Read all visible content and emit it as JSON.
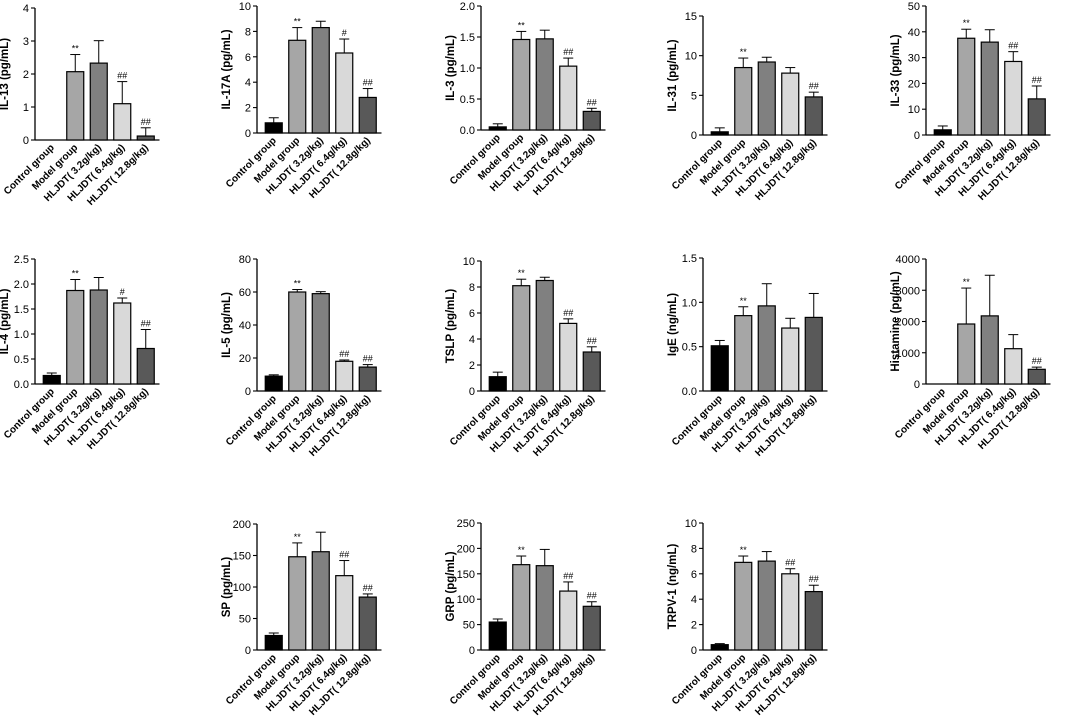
{
  "colors": [
    "#000000",
    "#a6a6a6",
    "#808080",
    "#d9d9d9",
    "#595959"
  ],
  "chart_data": [
    {
      "type": "bar",
      "ylabel": "IL-13 (pg/mL)",
      "ylim": [
        0,
        4
      ],
      "yticks": [
        0,
        1,
        2,
        3,
        4
      ],
      "categories": [
        "Control group",
        "Model group",
        "HLJDT( 3.2g/kg)",
        "HLJDT( 6.4g/kg)",
        "HLJDT( 12.8g/kg)"
      ],
      "values": [
        0,
        2.07,
        2.33,
        1.1,
        0.12
      ],
      "errors": [
        0,
        0.52,
        0.68,
        0.67,
        0.25
      ],
      "significance": [
        "",
        "**",
        "",
        "##",
        "##"
      ]
    },
    {
      "type": "bar",
      "ylabel": "IL-17A (pg/mL)",
      "ylim": [
        0,
        10
      ],
      "yticks": [
        0,
        2,
        4,
        6,
        8,
        10
      ],
      "categories": [
        "Control group",
        "Model group",
        "HLJDT( 3.2g/kg)",
        "HLJDT( 6.4g/kg)",
        "HLJDT( 12.8g/kg)"
      ],
      "values": [
        0.8,
        7.3,
        8.3,
        6.3,
        2.8
      ],
      "errors": [
        0.4,
        1.0,
        0.5,
        1.1,
        0.7
      ],
      "significance": [
        "",
        "**",
        "",
        "#",
        "##"
      ]
    },
    {
      "type": "bar",
      "ylabel": "IL-3 (pg/mL)",
      "ylim": [
        0,
        2
      ],
      "yticks": [
        0,
        0.5,
        1,
        1.5,
        2
      ],
      "yticklabels": [
        "0.0",
        "0.5",
        "1.0",
        "1.5",
        "2.0"
      ],
      "categories": [
        "Control group",
        "Model group",
        "HLJDT( 3.2g/kg)",
        "HLJDT( 6.4g/kg)",
        "HLJDT( 12.8g/kg)"
      ],
      "values": [
        0.05,
        1.46,
        1.47,
        1.03,
        0.3
      ],
      "errors": [
        0.05,
        0.13,
        0.14,
        0.13,
        0.05
      ],
      "significance": [
        "",
        "**",
        "",
        "##",
        "##"
      ]
    },
    {
      "type": "bar",
      "ylabel": "IL-31 (pg/mL)",
      "ylim": [
        0,
        15
      ],
      "yticks": [
        0,
        5,
        10,
        15
      ],
      "categories": [
        "Control group",
        "Model group",
        "HLJDT( 3.2g/kg)",
        "HLJDT( 6.4g/kg)",
        "HLJDT( 12.8g/kg)"
      ],
      "values": [
        0.4,
        8.5,
        9.2,
        7.8,
        4.8
      ],
      "errors": [
        0.5,
        1.2,
        0.6,
        0.7,
        0.6
      ],
      "significance": [
        "",
        "**",
        "",
        "",
        "##"
      ]
    },
    {
      "type": "bar",
      "ylabel": "IL-33 (pg/mL)",
      "ylim": [
        0,
        50
      ],
      "yticks": [
        0,
        10,
        20,
        30,
        40,
        50
      ],
      "categories": [
        "Control group",
        "Model group",
        "HLJDT( 3.2g/kg)",
        "HLJDT( 6.4g/kg)",
        "HLJDT( 12.8g/kg)"
      ],
      "values": [
        2,
        37.5,
        36,
        28.5,
        14
      ],
      "errors": [
        1.5,
        3.5,
        4.8,
        3.8,
        5
      ],
      "significance": [
        "",
        "**",
        "",
        "##",
        "##"
      ]
    },
    {
      "type": "bar",
      "ylabel": "IL-4 (pg/mL)",
      "ylim": [
        0,
        2.5
      ],
      "yticks": [
        0,
        0.5,
        1,
        1.5,
        2,
        2.5
      ],
      "yticklabels": [
        "0.0",
        "0.5",
        "1.0",
        "1.5",
        "2.0",
        "2.5"
      ],
      "categories": [
        "Control group",
        "Model group",
        "HLJDT( 3.2g/kg)",
        "HLJDT( 6.4g/kg)",
        "HLJDT( 12.8g/kg)"
      ],
      "values": [
        0.17,
        1.87,
        1.88,
        1.62,
        0.71
      ],
      "errors": [
        0.05,
        0.22,
        0.25,
        0.1,
        0.38
      ],
      "significance": [
        "",
        "**",
        "",
        "#",
        "##"
      ]
    },
    {
      "type": "bar",
      "ylabel": "IL-5 (pg/mL)",
      "ylim": [
        0,
        80
      ],
      "yticks": [
        0,
        20,
        40,
        60,
        80
      ],
      "categories": [
        "Control group",
        "Model group",
        "HLJDT( 3.2g/kg)",
        "HLJDT( 6.4g/kg)",
        "HLJDT( 12.8g/kg)"
      ],
      "values": [
        9,
        60,
        59,
        18,
        14.5
      ],
      "errors": [
        0.8,
        1.5,
        1.2,
        0.8,
        1.5
      ],
      "significance": [
        "",
        "**",
        "",
        "##",
        "##"
      ]
    },
    {
      "type": "bar",
      "ylabel": "TSLP (pg/mL)",
      "ylim": [
        0,
        10
      ],
      "yticks": [
        0,
        2,
        4,
        6,
        8,
        10
      ],
      "categories": [
        "Control group",
        "Model group",
        "HLJDT( 3.2g/kg)",
        "HLJDT( 6.4g/kg)",
        "HLJDT( 12.8g/kg)"
      ],
      "values": [
        1.1,
        8.1,
        8.5,
        5.2,
        3
      ],
      "errors": [
        0.35,
        0.5,
        0.25,
        0.35,
        0.4
      ],
      "significance": [
        "",
        "**",
        "",
        "##",
        "##"
      ]
    },
    {
      "type": "bar",
      "ylabel": "IgE (ng/mL)",
      "ylim": [
        0,
        1.5
      ],
      "yticks": [
        0,
        0.5,
        1,
        1.5
      ],
      "yticklabels": [
        "0.0",
        "0.5",
        "1.0",
        "1.5"
      ],
      "categories": [
        "Control group",
        "Model group",
        "HLJDT( 3.2g/kg)",
        "HLJDT( 6.4g/kg)",
        "HLJDT( 12.8g/kg)"
      ],
      "values": [
        0.51,
        0.85,
        0.96,
        0.71,
        0.83
      ],
      "errors": [
        0.06,
        0.1,
        0.25,
        0.11,
        0.27
      ],
      "significance": [
        "",
        "**",
        "",
        "",
        ""
      ]
    },
    {
      "type": "bar",
      "ylabel": "Histamine (pg/mL)",
      "ylim": [
        0,
        4000
      ],
      "yticks": [
        0,
        1000,
        2000,
        3000,
        4000
      ],
      "categories": [
        "Control group",
        "Model group",
        "HLJDT( 3.2g/kg)",
        "HLJDT( 6.4g/kg)",
        "HLJDT( 12.8g/kg)"
      ],
      "values": [
        0,
        1920,
        2180,
        1130,
        470
      ],
      "errors": [
        0,
        1150,
        1300,
        450,
        70
      ],
      "significance": [
        "",
        "**",
        "",
        "",
        "##"
      ]
    },
    {
      "type": "bar",
      "ylabel": "SP (pg/mL)",
      "ylim": [
        0,
        200
      ],
      "yticks": [
        0,
        50,
        100,
        150,
        200
      ],
      "categories": [
        "Control group",
        "Model group",
        "HLJDT( 3.2g/kg)",
        "HLJDT( 6.4g/kg)",
        "HLJDT( 12.8g/kg)"
      ],
      "values": [
        23,
        148,
        156,
        118,
        84
      ],
      "errors": [
        4,
        22,
        31,
        24,
        5
      ],
      "significance": [
        "",
        "**",
        "",
        "##",
        "##"
      ]
    },
    {
      "type": "bar",
      "ylabel": "GRP (pg/mL)",
      "ylim": [
        0,
        250
      ],
      "yticks": [
        0,
        50,
        100,
        150,
        200,
        250
      ],
      "categories": [
        "Control group",
        "Model group",
        "HLJDT( 3.2g/kg)",
        "HLJDT( 6.4g/kg)",
        "HLJDT( 12.8g/kg)"
      ],
      "values": [
        55,
        168,
        166,
        116,
        86
      ],
      "errors": [
        6,
        17,
        32,
        18,
        9
      ],
      "significance": [
        "",
        "**",
        "",
        "##",
        "##"
      ]
    },
    {
      "type": "bar",
      "ylabel": "TRPV-1 (ng/mL)",
      "ylim": [
        0,
        10
      ],
      "yticks": [
        0,
        2,
        4,
        6,
        8,
        10
      ],
      "categories": [
        "Control group",
        "Model group",
        "HLJDT( 3.2g/kg)",
        "HLJDT( 6.4g/kg)",
        "HLJDT( 12.8g/kg)"
      ],
      "values": [
        0.42,
        6.9,
        7.0,
        6.0,
        4.6
      ],
      "errors": [
        0.08,
        0.5,
        0.75,
        0.4,
        0.5
      ],
      "significance": [
        "",
        "**",
        "",
        "##",
        "##"
      ]
    }
  ]
}
